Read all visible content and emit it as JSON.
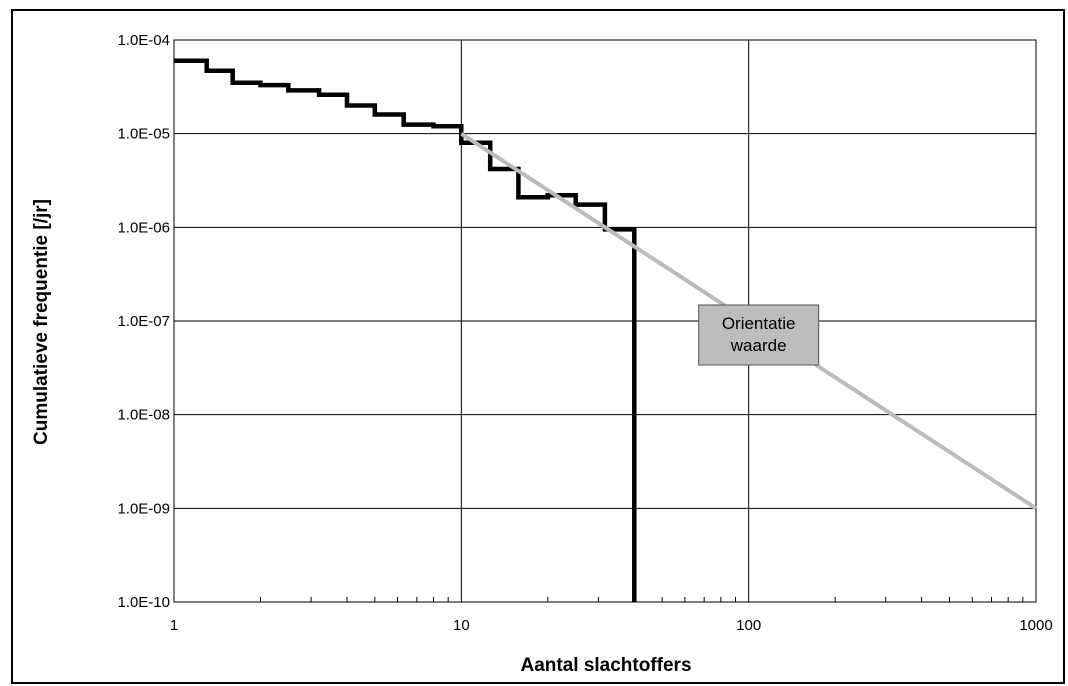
{
  "chart_data": {
    "type": "line",
    "xlabel": "Aantal slachtoffers",
    "ylabel": "Cumulatieve frequentie [/jr]",
    "x_scale": "log",
    "y_scale": "log",
    "xlim": [
      1,
      1000
    ],
    "ylim": [
      1e-10,
      0.0001
    ],
    "grid": true,
    "x_ticks": [
      {
        "value": 1,
        "label": "1"
      },
      {
        "value": 10,
        "label": "10"
      },
      {
        "value": 100,
        "label": "100"
      },
      {
        "value": 1000,
        "label": "1000"
      }
    ],
    "y_ticks": [
      {
        "value": 0.0001,
        "label": "1.0E-04"
      },
      {
        "value": 1e-05,
        "label": "1.0E-05"
      },
      {
        "value": 1e-06,
        "label": "1.0E-06"
      },
      {
        "value": 1e-07,
        "label": "1.0E-07"
      },
      {
        "value": 1e-08,
        "label": "1.0E-08"
      },
      {
        "value": 1e-09,
        "label": "1.0E-09"
      },
      {
        "value": 1e-10,
        "label": "1.0E-10"
      }
    ],
    "series": [
      {
        "color": "#000000",
        "style": "step",
        "points": [
          [
            1,
            6e-05
          ],
          [
            1.3,
            6e-05
          ],
          [
            1.3,
            4.7e-05
          ],
          [
            1.6,
            4.7e-05
          ],
          [
            1.6,
            3.5e-05
          ],
          [
            2.0,
            3.5e-05
          ],
          [
            2.0,
            3.3e-05
          ],
          [
            2.5,
            3.3e-05
          ],
          [
            2.5,
            2.9e-05
          ],
          [
            3.2,
            2.9e-05
          ],
          [
            3.2,
            2.6e-05
          ],
          [
            4.0,
            2.6e-05
          ],
          [
            4.0,
            2e-05
          ],
          [
            5.0,
            2e-05
          ],
          [
            5.0,
            1.6e-05
          ],
          [
            6.3,
            1.6e-05
          ],
          [
            6.3,
            1.25e-05
          ],
          [
            8.0,
            1.25e-05
          ],
          [
            8.0,
            1.2e-05
          ],
          [
            10,
            1.2e-05
          ],
          [
            10,
            8e-06
          ],
          [
            12.6,
            8e-06
          ],
          [
            12.6,
            4.2e-06
          ],
          [
            15.8,
            4.2e-06
          ],
          [
            15.8,
            2.1e-06
          ],
          [
            20,
            2.1e-06
          ],
          [
            20,
            2.2e-06
          ],
          [
            25,
            2.2e-06
          ],
          [
            25,
            1.75e-06
          ],
          [
            31.6,
            1.75e-06
          ],
          [
            31.6,
            9.5e-07
          ],
          [
            40,
            9.5e-07
          ],
          [
            40,
            1e-10
          ]
        ]
      },
      {
        "color": "#bbbbbb",
        "style": "line",
        "points": [
          [
            10,
            1e-05
          ],
          [
            1000,
            1e-09
          ]
        ]
      }
    ],
    "annotations": [
      {
        "lines": [
          "Orientatie",
          "waarde"
        ],
        "x": 100,
        "y": 1e-07,
        "background": "#bdbdbd"
      }
    ]
  }
}
